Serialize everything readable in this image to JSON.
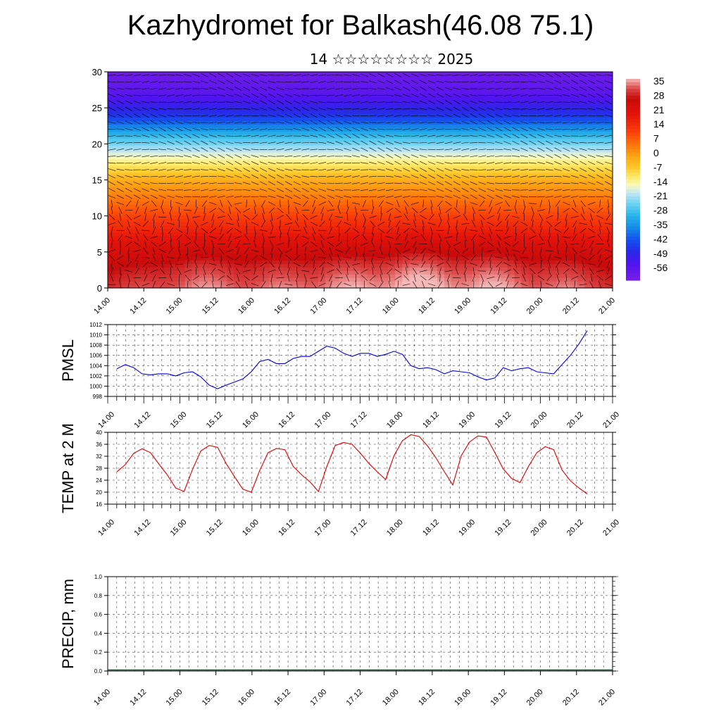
{
  "title": "Kazhydromet for Balkash(46.08 75.1)",
  "subtitle": "14 ☆☆☆☆☆☆☆☆ 2025",
  "time_labels": [
    "14.00",
    "14.12",
    "15.00",
    "15.12",
    "16.00",
    "16.12",
    "17.00",
    "17.12",
    "18.00",
    "18.12",
    "19.00",
    "19.12",
    "20.00",
    "20.12",
    "21.00"
  ],
  "chart_data": [
    {
      "type": "heatmap",
      "name": "temperature-wind cross-section",
      "x_labels": [
        "14.00",
        "14.12",
        "15.00",
        "15.12",
        "16.00",
        "16.12",
        "17.00",
        "17.12",
        "18.00",
        "18.12",
        "19.00",
        "19.12",
        "20.00",
        "20.12",
        "21.00"
      ],
      "y_ticks": [
        0,
        5,
        10,
        15,
        20,
        25,
        30
      ],
      "ylim": [
        0,
        30
      ],
      "colorbar_labels": [
        "35",
        "28",
        "21",
        "14",
        "7",
        "0",
        "-7",
        "-14",
        "-21",
        "-28",
        "-35",
        "-42",
        "-49",
        "-56"
      ],
      "colorbar_range": [
        -60,
        40
      ],
      "level_temperature_profile": {
        "levels": [
          0,
          3,
          6,
          9,
          12,
          15,
          18,
          21,
          24,
          27,
          30
        ],
        "temperature": [
          34,
          30,
          24,
          16,
          8,
          0,
          -12,
          -26,
          -44,
          -54,
          -58
        ]
      },
      "surface_warm_maxima": [
        {
          "time": "15.06",
          "t_anomaly": 4
        },
        {
          "time": "16.06",
          "t_anomaly": 3
        },
        {
          "time": "17.06",
          "t_anomaly": 5
        },
        {
          "time": "18.06",
          "t_anomaly": 8
        },
        {
          "time": "19.06",
          "t_anomaly": 6
        },
        {
          "time": "20.06",
          "t_anomaly": 3
        }
      ]
    },
    {
      "type": "line",
      "ylabel": "PMSL",
      "ylim": [
        998,
        1012
      ],
      "y_ticks": [
        998,
        1000,
        1002,
        1004,
        1006,
        1008,
        1010,
        1012
      ],
      "x_labels": [
        "14.00",
        "14.12",
        "15.00",
        "15.12",
        "16.00",
        "16.12",
        "17.00",
        "17.12",
        "18.00",
        "18.12",
        "19.00",
        "19.12",
        "20.00",
        "20.12",
        "21.00"
      ],
      "series": [
        {
          "color": "#0000dd",
          "values": [
            1003.4,
            1004.2,
            1003.6,
            1002.4,
            1002.2,
            1002.4,
            1002.4,
            1002.0,
            1002.6,
            1002.8,
            1001.8,
            1000.2,
            999.5,
            1000.2,
            1000.8,
            1001.4,
            1002.8,
            1004.8,
            1005.2,
            1004.4,
            1004.4,
            1005.4,
            1005.8,
            1005.8,
            1006.8,
            1007.8,
            1007.4,
            1006.4,
            1005.8,
            1006.4,
            1006.4,
            1005.8,
            1006.2,
            1006.8,
            1006.2,
            1004.0,
            1003.4,
            1003.6,
            1003.2,
            1002.4,
            1003.0,
            1002.8,
            1002.6,
            1001.8,
            1001.2,
            1001.6,
            1003.6,
            1003.0,
            1003.4,
            1003.6,
            1002.8,
            1002.6,
            1002.4,
            1004.2,
            1006.0,
            1008.2,
            1010.8
          ]
        }
      ]
    },
    {
      "type": "line",
      "ylabel": "TEMP at 2 M",
      "ylim": [
        16,
        40
      ],
      "y_ticks": [
        16,
        20,
        24,
        28,
        32,
        36,
        40
      ],
      "x_labels": [
        "14.00",
        "14.12",
        "15.00",
        "15.12",
        "16.00",
        "16.12",
        "17.00",
        "17.12",
        "18.00",
        "18.12",
        "19.00",
        "19.12",
        "20.00",
        "20.12",
        "21.00"
      ],
      "series": [
        {
          "color": "#dd0000",
          "values": [
            26.8,
            29.2,
            33.0,
            34.5,
            33.2,
            29.4,
            25.8,
            21.4,
            20.2,
            27.6,
            33.8,
            35.6,
            35.0,
            29.6,
            25.2,
            21.0,
            20.0,
            27.2,
            33.2,
            34.6,
            34.2,
            28.6,
            25.8,
            23.4,
            20.2,
            28.6,
            35.6,
            36.6,
            36.0,
            33.0,
            29.6,
            26.8,
            24.2,
            32.2,
            37.2,
            39.2,
            38.6,
            35.4,
            31.4,
            26.8,
            22.4,
            32.2,
            36.8,
            38.8,
            38.4,
            33.2,
            27.8,
            24.6,
            23.2,
            28.6,
            33.2,
            35.2,
            34.2,
            27.4,
            23.8,
            21.4,
            19.4
          ]
        }
      ]
    },
    {
      "type": "bar",
      "ylabel": "PRECIP, mm",
      "ylim": [
        0,
        1.0
      ],
      "y_ticks": [
        "0.0",
        "0.2",
        "0.4",
        "0.6",
        "0.8",
        "1.0"
      ],
      "x_labels": [
        "14.00",
        "14.12",
        "15.00",
        "15.12",
        "16.00",
        "16.12",
        "17.00",
        "17.12",
        "18.00",
        "18.12",
        "19.00",
        "19.12",
        "20.00",
        "20.12",
        "21.00"
      ],
      "values": [
        0,
        0,
        0,
        0,
        0,
        0,
        0,
        0,
        0,
        0,
        0,
        0,
        0,
        0,
        0,
        0,
        0,
        0,
        0,
        0,
        0,
        0,
        0,
        0,
        0,
        0,
        0,
        0,
        0,
        0,
        0,
        0,
        0,
        0,
        0,
        0,
        0,
        0,
        0,
        0,
        0,
        0,
        0,
        0,
        0,
        0,
        0,
        0,
        0,
        0,
        0,
        0,
        0,
        0,
        0,
        0,
        0
      ]
    }
  ]
}
